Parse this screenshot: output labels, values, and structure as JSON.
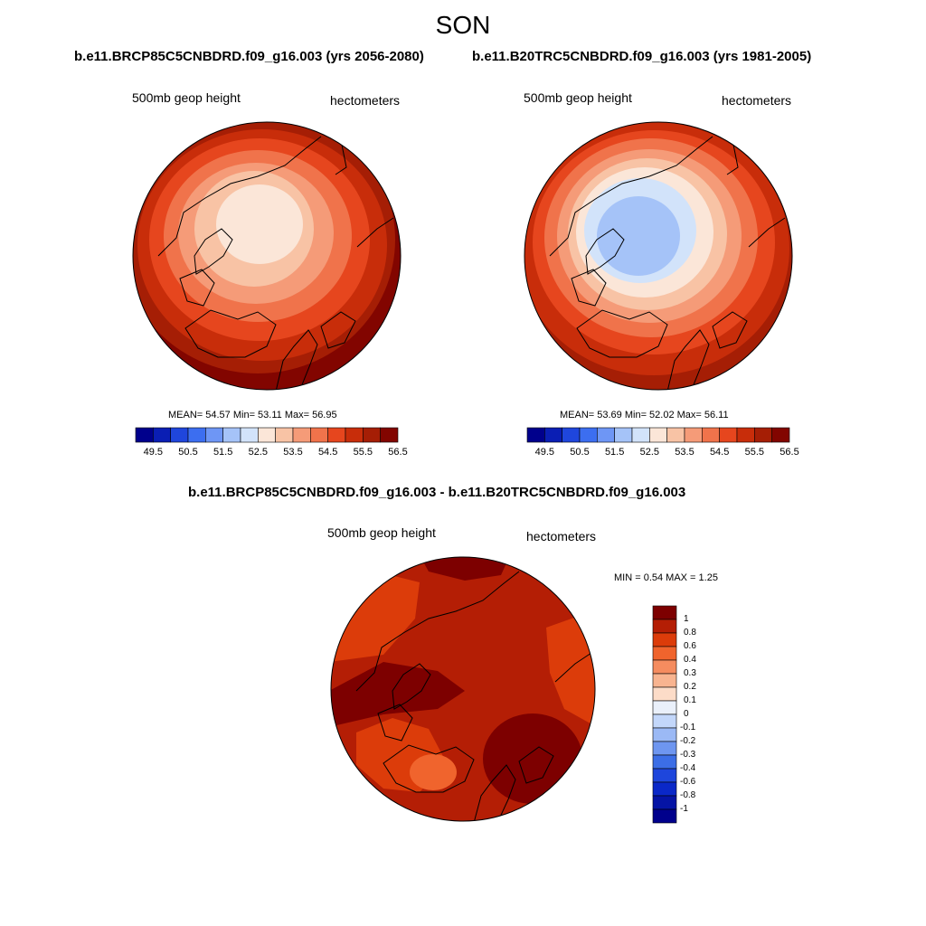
{
  "page": {
    "season": "SON",
    "top_titles": [
      "b.e11.BRCP85C5CNBDRD.f09_g16.003 (yrs 2056-2080)",
      "b.e11.B20TRC5CNBDRD.f09_g16.003 (yrs 1981-2005)"
    ],
    "diff_title": "b.e11.BRCP85C5CNBDRD.f09_g16.003 - b.e11.B20TRC5CNBDRD.f09_g16.003"
  },
  "panels": [
    {
      "left_label": "500mb geop height",
      "right_label": "hectometers",
      "stats": "MEAN=  54.57  Min=  53.11  Max=  56.95"
    },
    {
      "left_label": "500mb geop height",
      "right_label": "hectometers",
      "stats": "MEAN=  53.69  Min=  52.02  Max=  56.11"
    },
    {
      "left_label": "500mb geop height",
      "right_label": "hectometers",
      "stats": "MIN =   0.54 MAX =   1.25"
    }
  ],
  "colorbar": {
    "colors": [
      "#00008c",
      "#0a1eb4",
      "#1f46dc",
      "#3c6ef0",
      "#6e96f5",
      "#a5c3f8",
      "#d2e3fa",
      "#fbe6d8",
      "#f8c3a5",
      "#f59b78",
      "#f0734b",
      "#e6461e",
      "#c82d0a",
      "#a51e05",
      "#820500"
    ],
    "ticks": [
      "49.5",
      "50.5",
      "51.5",
      "52.5",
      "53.5",
      "54.5",
      "55.5",
      "56.5"
    ]
  },
  "diff_colorbar": {
    "colors": [
      "#7d0000",
      "#b41e05",
      "#dc3c0a",
      "#f0642d",
      "#f58c5f",
      "#f8b490",
      "#fcdcc8",
      "#eaf0fa",
      "#c3d7fa",
      "#9bb9f5",
      "#6e96f0",
      "#3c6ee6",
      "#1e46dc",
      "#0a28c8",
      "#0514a5",
      "#00008c"
    ],
    "ticks": [
      "1",
      "0.8",
      "0.6",
      "0.4",
      "0.3",
      "0.2",
      "0.1",
      "0",
      "-0.1",
      "-0.2",
      "-0.3",
      "-0.4",
      "-0.6",
      "-0.8",
      "-1"
    ]
  }
}
